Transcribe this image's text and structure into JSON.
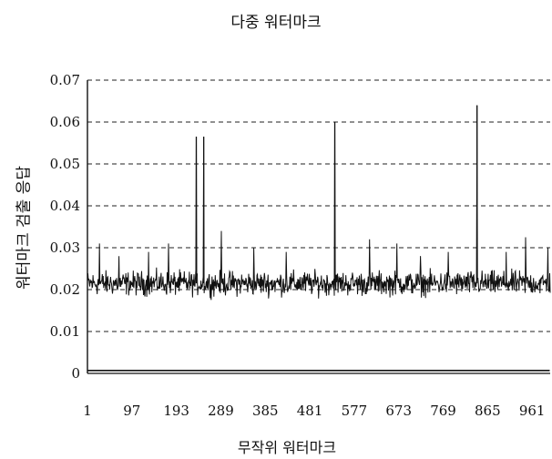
{
  "chart_data": {
    "type": "line",
    "title": "다중 워터마크",
    "xlabel": "무작위 워터마크",
    "ylabel": "워터마크 검출 응답",
    "xlim": [
      1,
      1000
    ],
    "ylim": [
      0,
      0.07
    ],
    "x_ticks": [
      "1",
      "97",
      "193",
      "289",
      "385",
      "481",
      "577",
      "673",
      "769",
      "865",
      "961"
    ],
    "y_ticks": [
      "0",
      "0.01",
      "0.02",
      "0.03",
      "0.04",
      "0.05",
      "0.06",
      "0.07"
    ],
    "grid": "horizontal dashed",
    "baseline_level": 0.0011,
    "noise_level": 0.0215,
    "spikes": [
      {
        "x": 236,
        "y": 0.0565
      },
      {
        "x": 252,
        "y": 0.0565
      },
      {
        "x": 535,
        "y": 0.06
      },
      {
        "x": 842,
        "y": 0.064
      }
    ],
    "minor_peaks": [
      {
        "x": 27,
        "y": 0.031
      },
      {
        "x": 69,
        "y": 0.028
      },
      {
        "x": 133,
        "y": 0.029
      },
      {
        "x": 176,
        "y": 0.031
      },
      {
        "x": 290,
        "y": 0.034
      },
      {
        "x": 360,
        "y": 0.03
      },
      {
        "x": 430,
        "y": 0.029
      },
      {
        "x": 610,
        "y": 0.032
      },
      {
        "x": 669,
        "y": 0.031
      },
      {
        "x": 720,
        "y": 0.028
      },
      {
        "x": 780,
        "y": 0.029
      },
      {
        "x": 905,
        "y": 0.029
      },
      {
        "x": 947,
        "y": 0.0325
      },
      {
        "x": 995,
        "y": 0.03
      }
    ],
    "series": [
      {
        "values_hint": "noisy response around 0.021 with four tall spikes"
      },
      {
        "values_hint": "flat dense band near 0.001"
      }
    ]
  }
}
